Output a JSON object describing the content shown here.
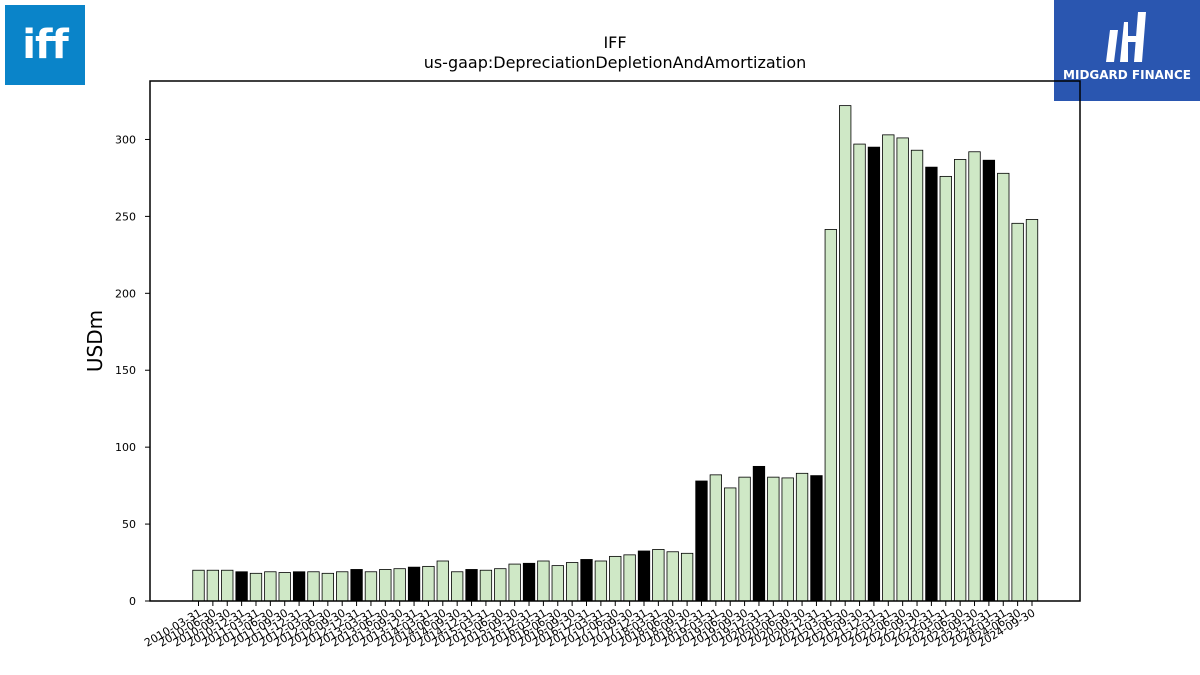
{
  "branding": {
    "left_logo": {
      "text": "iff",
      "color": "#0a84c9"
    },
    "right_logo": {
      "text": "MIDGARD FINANCE",
      "color": "#2a56b0"
    }
  },
  "chart_data": {
    "type": "bar",
    "title": "IFF",
    "subtitle": "us-gaap:DepreciationDepletionAndAmortization",
    "xlabel": "",
    "ylabel": "USDm",
    "ylim": [
      0,
      338
    ],
    "yticks": [
      0,
      50,
      100,
      150,
      200,
      250,
      300
    ],
    "grid": false,
    "colors": {
      "quarter": "#cfe8c6",
      "annual": "#000000",
      "edge": "#000000"
    },
    "categories": [
      "2010-03-31",
      "2010-06-30",
      "2010-09-30",
      "2010-12-31",
      "2011-03-31",
      "2011-06-30",
      "2011-09-30",
      "2011-12-31",
      "2012-03-31",
      "2012-06-30",
      "2012-09-30",
      "2012-12-31",
      "2013-03-31",
      "2013-06-30",
      "2013-09-30",
      "2013-12-31",
      "2014-03-31",
      "2014-06-30",
      "2014-09-30",
      "2014-12-31",
      "2015-03-31",
      "2015-06-30",
      "2015-09-30",
      "2015-12-31",
      "2016-03-31",
      "2016-06-30",
      "2016-09-30",
      "2016-12-31",
      "2017-03-31",
      "2017-06-30",
      "2017-09-30",
      "2017-12-31",
      "2018-03-31",
      "2018-06-30",
      "2018-09-30",
      "2018-12-31",
      "2019-03-31",
      "2019-06-30",
      "2019-09-30",
      "2019-12-31",
      "2020-03-31",
      "2020-06-30",
      "2020-09-30",
      "2020-12-31",
      "2021-03-31",
      "2021-06-30",
      "2021-09-30",
      "2021-12-31",
      "2022-03-31",
      "2022-06-30",
      "2022-09-30",
      "2022-12-31",
      "2023-03-31",
      "2023-06-30",
      "2023-09-30",
      "2023-12-31",
      "2024-03-31",
      "2024-06-30",
      "2024-09-30"
    ],
    "values": [
      20,
      20,
      20,
      19,
      18,
      19,
      18.5,
      19,
      19,
      18,
      19,
      20.5,
      19,
      20.5,
      21,
      22,
      22.5,
      26,
      19,
      20.5,
      20,
      21,
      24,
      24.5,
      26,
      23,
      25,
      27,
      26,
      29,
      30,
      32.5,
      33.5,
      32,
      31,
      78,
      82,
      73.5,
      80.5,
      87.5,
      80.5,
      80,
      83,
      81.5,
      241.5,
      322,
      297,
      295,
      303,
      301,
      293,
      282,
      276,
      287,
      292,
      286.5,
      278,
      245.5,
      248
    ],
    "annual_flags": [
      0,
      0,
      0,
      1,
      0,
      0,
      0,
      1,
      0,
      0,
      0,
      1,
      0,
      0,
      0,
      1,
      0,
      0,
      0,
      1,
      0,
      0,
      0,
      1,
      0,
      0,
      0,
      1,
      0,
      0,
      0,
      1,
      0,
      0,
      0,
      1,
      0,
      0,
      0,
      1,
      0,
      0,
      0,
      1,
      0,
      0,
      0,
      1,
      0,
      0,
      0,
      1,
      0,
      0,
      0,
      1,
      0,
      0,
      0
    ]
  }
}
